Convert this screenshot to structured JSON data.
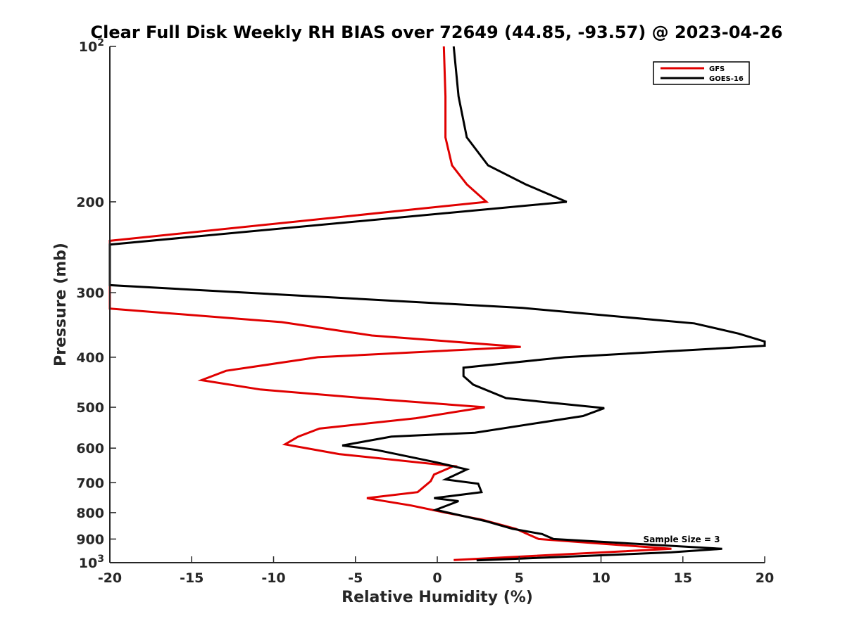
{
  "chart_data": {
    "type": "line",
    "title": "Clear Full Disk Weekly RH BIAS over 72649 (44.85, -93.57) @ 2023-04-26",
    "xlabel": "Relative Humidity (%)",
    "ylabel": "Pressure (mb)",
    "xlim": [
      -20,
      20
    ],
    "ylim": [
      1000,
      100
    ],
    "yscale": "log",
    "x_ticks": [
      "-20",
      "-15",
      "-10",
      "-5",
      "0",
      "5",
      "10",
      "15",
      "20"
    ],
    "y_ticks": [
      {
        "value": 100,
        "label": "10",
        "sup": "2"
      },
      {
        "value": 200,
        "label": "200",
        "sup": ""
      },
      {
        "value": 300,
        "label": "300",
        "sup": ""
      },
      {
        "value": 400,
        "label": "400",
        "sup": ""
      },
      {
        "value": 500,
        "label": "500",
        "sup": ""
      },
      {
        "value": 600,
        "label": "600",
        "sup": ""
      },
      {
        "value": 700,
        "label": "700",
        "sup": ""
      },
      {
        "value": 800,
        "label": "800",
        "sup": ""
      },
      {
        "value": 900,
        "label": "900",
        "sup": ""
      },
      {
        "value": 1000,
        "label": "10",
        "sup": "3"
      }
    ],
    "grid": false,
    "legend_position": "top-right",
    "annotation": "Sample Size = 3",
    "series": [
      {
        "name": "GFS",
        "color": "#e00000",
        "points": [
          [
            0.4,
            100
          ],
          [
            0.5,
            125
          ],
          [
            0.5,
            150
          ],
          [
            0.9,
            170
          ],
          [
            1.8,
            185
          ],
          [
            3.0,
            200
          ],
          [
            -20,
            238
          ],
          [
            -20,
            322
          ],
          [
            -9.5,
            342
          ],
          [
            -4.0,
            363
          ],
          [
            5.1,
            382
          ],
          [
            -7.3,
            400
          ],
          [
            -12.9,
            425
          ],
          [
            -14.4,
            443
          ],
          [
            -10.8,
            462
          ],
          [
            -4.5,
            480
          ],
          [
            2.9,
            500
          ],
          [
            -1.3,
            525
          ],
          [
            -7.2,
            550
          ],
          [
            -8.5,
            570
          ],
          [
            -9.3,
            590
          ],
          [
            -6.0,
            616
          ],
          [
            1.0,
            650
          ],
          [
            -0.2,
            675
          ],
          [
            -0.4,
            695
          ],
          [
            -1.2,
            730
          ],
          [
            -4.3,
            750
          ],
          [
            -1.6,
            775
          ],
          [
            0.5,
            800
          ],
          [
            2.7,
            825
          ],
          [
            4.8,
            860
          ],
          [
            5.5,
            880
          ],
          [
            6.2,
            900
          ],
          [
            14.3,
            940
          ],
          [
            1.0,
            988
          ]
        ]
      },
      {
        "name": "GOES-16",
        "color": "#000000",
        "points": [
          [
            1.0,
            100
          ],
          [
            1.3,
            125
          ],
          [
            1.8,
            150
          ],
          [
            3.1,
            170
          ],
          [
            5.4,
            185
          ],
          [
            7.9,
            200
          ],
          [
            -20,
            242
          ],
          [
            -20,
            290
          ],
          [
            5.2,
            321
          ],
          [
            15.7,
            344
          ],
          [
            18.4,
            360
          ],
          [
            20.0,
            373
          ],
          [
            20.0,
            380
          ],
          [
            7.8,
            400
          ],
          [
            1.6,
            419
          ],
          [
            1.6,
            435
          ],
          [
            2.2,
            452
          ],
          [
            4.2,
            480
          ],
          [
            10.2,
            502
          ],
          [
            8.9,
            520
          ],
          [
            2.3,
            560
          ],
          [
            -2.8,
            570
          ],
          [
            -5.8,
            593
          ],
          [
            -3.7,
            605
          ],
          [
            0.0,
            640
          ],
          [
            1.8,
            660
          ],
          [
            0.5,
            690
          ],
          [
            2.5,
            703
          ],
          [
            2.7,
            730
          ],
          [
            -0.2,
            750
          ],
          [
            1.3,
            760
          ],
          [
            -0.1,
            790
          ],
          [
            2.9,
            830
          ],
          [
            4.6,
            860
          ],
          [
            6.4,
            880
          ],
          [
            7.1,
            900
          ],
          [
            17.4,
            940
          ],
          [
            14.3,
            955
          ],
          [
            2.4,
            990
          ]
        ]
      }
    ]
  }
}
